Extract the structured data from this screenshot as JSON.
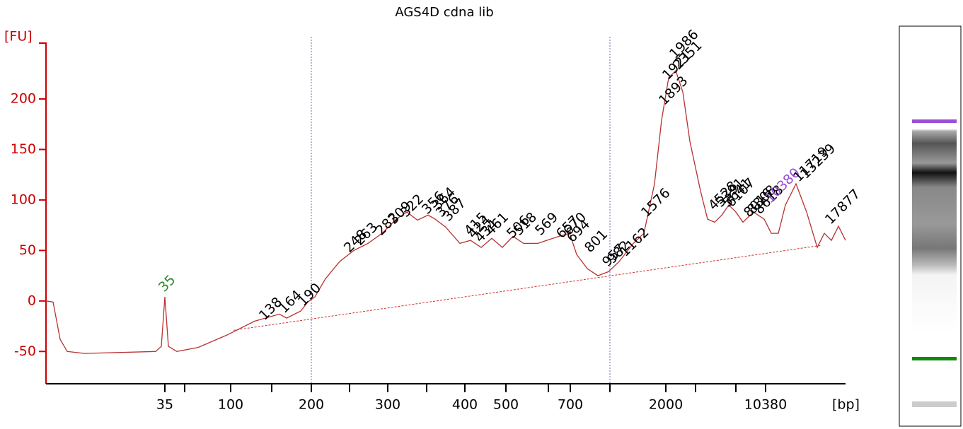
{
  "chart_data": {
    "type": "line",
    "title": "AGS4D cdna lib",
    "y_label": "[FU]",
    "x_label": "[bp]",
    "axis_color": "#cc0000",
    "trace_color": "#b83232",
    "ref_line_color": "#6a6ac8",
    "baseline_color": "#cc3333",
    "xlim": [
      0,
      113
    ],
    "ylim": [
      -82,
      256
    ],
    "yticks": [
      -50,
      0,
      50,
      100,
      150,
      200
    ],
    "xticks": [
      {
        "value": 16.8,
        "label": "35"
      },
      {
        "value": 26.1,
        "label": "100"
      },
      {
        "value": 37.5,
        "label": "200"
      },
      {
        "value": 48.3,
        "label": "300"
      },
      {
        "value": 59.2,
        "label": "400"
      },
      {
        "value": 65,
        "label": "500"
      },
      {
        "value": 74.1,
        "label": "700"
      },
      {
        "value": 87.6,
        "label": "2000"
      },
      {
        "value": 101.7,
        "label": "10380"
      }
    ],
    "xminorticks": [
      19.6,
      31.9,
      42.9,
      53.8,
      71,
      79.7,
      91.8,
      97.5
    ],
    "ref_lines": [
      37.5,
      79.7
    ],
    "baseline_x": [
      26.5,
      109.5
    ],
    "baseline_y": [
      -29,
      55
    ],
    "x": [
      0,
      1,
      2,
      3,
      5.5,
      15.5,
      16.3,
      16.8,
      17.3,
      18.5,
      21.5,
      25.5,
      29.5,
      33,
      34,
      36,
      37,
      38,
      39.5,
      41.5,
      43.5,
      45.5,
      47.5,
      49.5,
      51,
      52.5,
      54,
      55,
      56.5,
      58.5,
      60,
      61.5,
      63,
      64.5,
      66,
      67.5,
      69.5,
      72.5,
      74,
      75,
      76.5,
      78,
      79.5,
      81,
      83,
      84.5,
      86,
      87,
      88,
      89,
      90,
      91,
      92.5,
      93.5,
      94.5,
      95.5,
      96.5,
      97.5,
      98.5,
      100,
      101.5,
      102.5,
      103.5,
      104.5,
      106,
      107.5,
      109,
      110,
      111,
      112,
      113
    ],
    "values": [
      0,
      -1,
      -38,
      -50,
      -52,
      -50,
      -45,
      4,
      -45,
      -50,
      -46,
      -34,
      -20,
      -13,
      -17,
      -10,
      -1,
      4,
      22,
      39,
      50,
      57,
      67,
      81,
      88,
      80,
      85,
      81,
      73,
      57,
      60,
      53,
      62,
      53,
      64,
      57,
      57,
      64,
      67,
      46,
      32,
      25,
      29,
      39,
      57,
      67,
      116,
      179,
      221,
      228,
      207,
      158,
      109,
      81,
      78,
      85,
      95,
      88,
      78,
      88,
      81,
      67,
      67,
      95,
      116,
      88,
      53,
      67,
      60,
      74,
      60
    ],
    "peaks": [
      {
        "label": "35",
        "x": 16.3,
        "y": 11,
        "color": "#2a8a2a"
      },
      {
        "label": "138",
        "x": 30.5,
        "y": -17
      },
      {
        "label": "164",
        "x": 33.3,
        "y": -10
      },
      {
        "label": "190",
        "x": 36,
        "y": -3
      },
      {
        "label": "248",
        "x": 42.5,
        "y": 50
      },
      {
        "label": "263",
        "x": 44,
        "y": 57
      },
      {
        "label": "282",
        "x": 47,
        "y": 67
      },
      {
        "label": "309",
        "x": 48.8,
        "y": 78
      },
      {
        "label": "322",
        "x": 50.5,
        "y": 85
      },
      {
        "label": "356",
        "x": 53.5,
        "y": 88
      },
      {
        "label": "364",
        "x": 55,
        "y": 92
      },
      {
        "label": "376",
        "x": 55.5,
        "y": 85
      },
      {
        "label": "387",
        "x": 56.5,
        "y": 81
      },
      {
        "label": "415",
        "x": 59.5,
        "y": 67
      },
      {
        "label": "424",
        "x": 60,
        "y": 64
      },
      {
        "label": "434",
        "x": 61,
        "y": 60
      },
      {
        "label": "461",
        "x": 62.5,
        "y": 67
      },
      {
        "label": "506",
        "x": 65.5,
        "y": 64
      },
      {
        "label": "518",
        "x": 66.5,
        "y": 67
      },
      {
        "label": "569",
        "x": 69.5,
        "y": 67
      },
      {
        "label": "657",
        "x": 72.5,
        "y": 64
      },
      {
        "label": "670",
        "x": 73.5,
        "y": 67
      },
      {
        "label": "694",
        "x": 74,
        "y": 60
      },
      {
        "label": "801",
        "x": 76.5,
        "y": 50
      },
      {
        "label": "957",
        "x": 79,
        "y": 36
      },
      {
        "label": "982",
        "x": 79.7,
        "y": 39
      },
      {
        "label": "1162",
        "x": 81.5,
        "y": 46
      },
      {
        "label": "1576",
        "x": 84.5,
        "y": 85
      },
      {
        "label": "1893",
        "x": 87,
        "y": 196
      },
      {
        "label": "1921",
        "x": 87.5,
        "y": 221
      },
      {
        "label": "1986",
        "x": 88.5,
        "y": 242
      },
      {
        "label": "2351",
        "x": 89,
        "y": 231
      },
      {
        "label": "4528",
        "x": 94,
        "y": 92
      },
      {
        "label": "5391",
        "x": 95,
        "y": 95
      },
      {
        "label": "5641",
        "x": 96,
        "y": 95
      },
      {
        "label": "6107",
        "x": 96.5,
        "y": 95
      },
      {
        "label": "8016",
        "x": 99,
        "y": 85
      },
      {
        "label": "8308",
        "x": 99.5,
        "y": 88
      },
      {
        "label": "8618",
        "x": 100.5,
        "y": 88
      },
      {
        "label": "10380",
        "x": 102,
        "y": 99,
        "color": "#9b4fd6"
      },
      {
        "label": "11719",
        "x": 106,
        "y": 120
      },
      {
        "label": "13239",
        "x": 107,
        "y": 123
      },
      {
        "label": "17877",
        "x": 110.5,
        "y": 78
      }
    ]
  }
}
